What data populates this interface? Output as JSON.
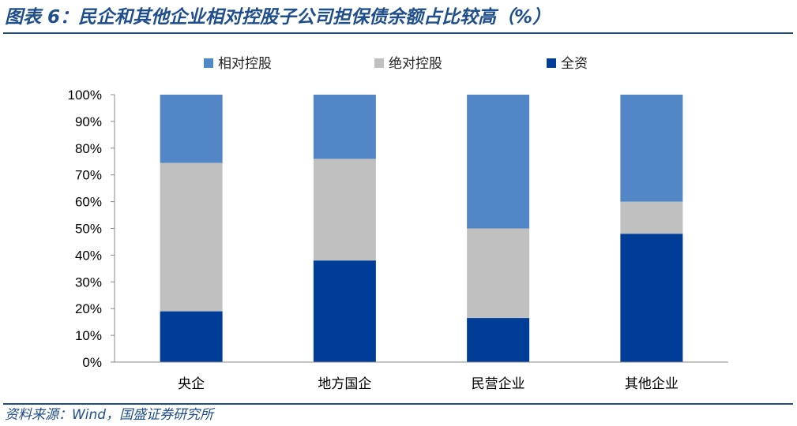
{
  "title": "图表 6：民企和其他企业相对控股子公司担保债余额占比较高（%）",
  "source": "资料来源：Wind，国盛证券研究所",
  "chart_data": {
    "type": "bar",
    "stacked": true,
    "categories": [
      "央企",
      "地方国企",
      "民营企业",
      "其他企业"
    ],
    "series": [
      {
        "name": "全资",
        "color": "#003d99",
        "values": [
          19,
          38,
          16.5,
          48
        ]
      },
      {
        "name": "绝对控股",
        "color": "#c0c0c0",
        "values": [
          55.5,
          38,
          33.5,
          12
        ]
      },
      {
        "name": "相对控股",
        "color": "#5286c6",
        "values": [
          25.5,
          24,
          50,
          40
        ]
      }
    ],
    "legend_order": [
      "相对控股",
      "绝对控股",
      "全资"
    ],
    "ylim": [
      0,
      100
    ],
    "yticks": [
      "0%",
      "10%",
      "20%",
      "30%",
      "40%",
      "50%",
      "60%",
      "70%",
      "80%",
      "90%",
      "100%"
    ],
    "legend_position": "top",
    "grid": false
  }
}
